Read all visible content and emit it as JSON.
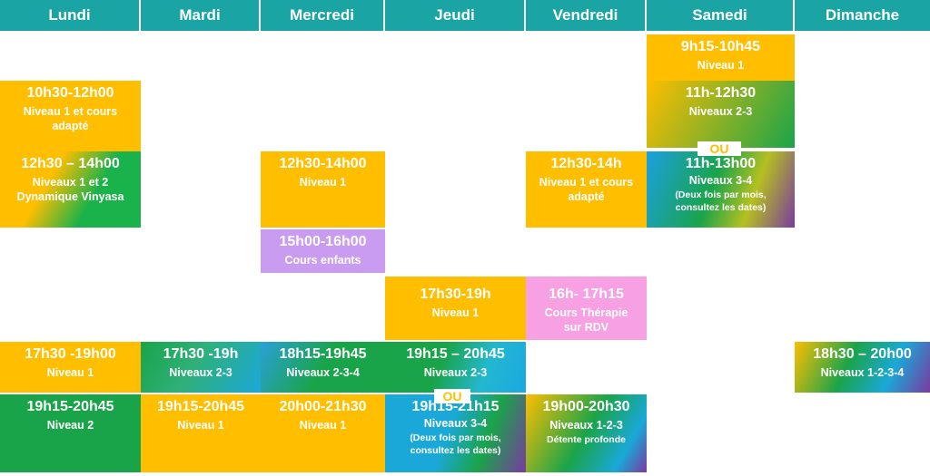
{
  "days": [
    "Lundi",
    "Mardi",
    "Mercredi",
    "Jeudi",
    "Vendredi",
    "Samedi",
    "Dimanche"
  ],
  "ou_label": "OU",
  "classes": {
    "sam_9h15": {
      "time": "9h15-10h45",
      "level": "Niveau 1"
    },
    "lun_10h30": {
      "time": "10h30-12h00",
      "level": "Niveau 1 et cours adapté"
    },
    "sam_11h": {
      "time": "11h-12h30",
      "level": "Niveaux 2-3"
    },
    "lun_12h30": {
      "time": "12h30 – 14h00",
      "level": "Niveaux 1 et 2 Dynamique Vinyasa"
    },
    "mer_12h30": {
      "time": "12h30-14h00",
      "level": "Niveau 1"
    },
    "ven_12h30": {
      "time": "12h30-14h",
      "level": "Niveau 1 et cours adapté"
    },
    "sam_11h_13h": {
      "time": "11h-13h00",
      "level": "Niveaux 3-4",
      "note": "(Deux fois par mois, consultez les dates)"
    },
    "mer_15h": {
      "time": "15h00-16h00",
      "level": "Cours enfants"
    },
    "jeu_17h30": {
      "time": "17h30-19h",
      "level": "Niveau 1"
    },
    "ven_16h": {
      "time": "16h- 17h15",
      "level": "Cours Thérapie sur RDV"
    },
    "lun_17h30": {
      "time": "17h30 -19h00",
      "level": "Niveau 1"
    },
    "mar_17h30": {
      "time": "17h30 -19h",
      "level": "Niveaux 2-3"
    },
    "mer_18h15": {
      "time": "18h15-19h45",
      "level": "Niveaux 2-3-4"
    },
    "jeu_19h15": {
      "time": "19h15 – 20h45",
      "level": "Niveaux 2-3"
    },
    "dim_18h30": {
      "time": "18h30 – 20h00",
      "level": "Niveaux 1-2-3-4"
    },
    "lun_19h15": {
      "time": "19h15-20h45",
      "level": "Niveau 2"
    },
    "mar_19h15": {
      "time": "19h15-20h45",
      "level": "Niveau 1"
    },
    "mer_20h": {
      "time": "20h00-21h30",
      "level": "Niveau 1"
    },
    "jeu_19h15_21h15": {
      "time": "19h15-21h15",
      "level": "Niveaux 3-4",
      "note": "(Deux fois par mois, consultez les dates)"
    },
    "ven_19h": {
      "time": "19h00-20h30",
      "level": "Niveaux 1-2-3",
      "note": "Détente profonde"
    }
  },
  "colors": {
    "header": "#1ba4a4",
    "orange": "#ffbe00",
    "green": "#1aa44a",
    "violet": "#c99cf2",
    "pink": "#f7a0e4",
    "blue": "#1aa8d8",
    "purple": "#7a3aa0"
  }
}
